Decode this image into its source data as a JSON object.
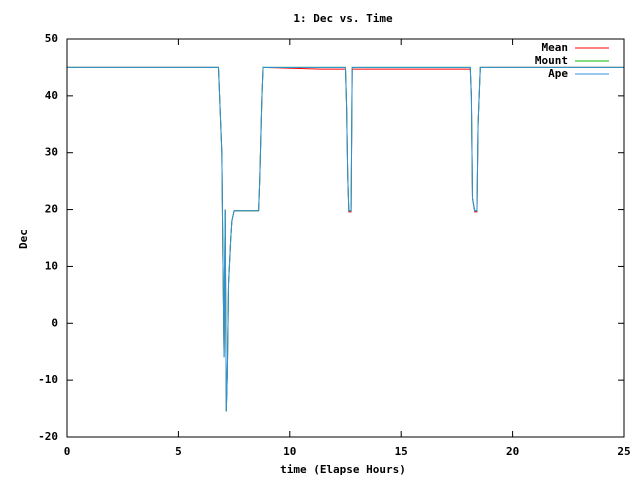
{
  "chart_data": {
    "type": "line",
    "title": "1: Dec vs. Time",
    "x_label": "time (Elapse Hours)",
    "y_label": "Dec",
    "x": [
      0,
      6.8,
      6.85,
      6.95,
      7.0,
      7.05,
      7.1,
      7.15,
      7.2,
      7.25,
      7.35,
      7.4,
      7.5,
      8.6,
      8.65,
      8.75,
      8.8,
      11.4,
      12.5,
      12.55,
      12.6,
      12.65,
      12.75,
      12.8,
      18.1,
      18.15,
      18.2,
      18.3,
      18.4,
      18.45,
      18.55,
      25
    ],
    "series": [
      {
        "name": "Mean",
        "color": "#ff0000",
        "values": [
          45,
          45,
          40,
          30,
          11,
          -6,
          20,
          -15.5,
          -8,
          7,
          15,
          18,
          19.8,
          19.8,
          25,
          40,
          45,
          44.7,
          44.7,
          38,
          26,
          19.6,
          19.6,
          44.7,
          44.7,
          40,
          22,
          19.6,
          19.6,
          35,
          45,
          45
        ]
      },
      {
        "name": "Mount",
        "color": "#00c000",
        "values": [
          45,
          45,
          40,
          30,
          11,
          -6,
          20,
          -15.5,
          -8,
          7,
          15,
          18,
          19.8,
          19.8,
          25,
          40,
          45,
          45,
          45,
          38,
          26,
          19.8,
          19.8,
          45,
          45,
          40,
          22,
          19.8,
          19.8,
          35,
          45,
          45
        ]
      },
      {
        "name": "Ape",
        "color": "#3090e0",
        "values": [
          45,
          45,
          40,
          30,
          11,
          -6,
          20,
          -15.5,
          -8,
          7,
          15,
          18,
          19.8,
          19.8,
          25,
          40,
          45,
          45,
          45,
          38,
          26,
          19.8,
          19.8,
          45,
          45,
          40,
          22,
          19.8,
          19.8,
          35,
          45,
          45
        ]
      }
    ],
    "xlim": [
      0,
      25
    ],
    "xticks": [
      0,
      5,
      10,
      15,
      20,
      25
    ],
    "ylim": [
      -20,
      50
    ],
    "yticks": [
      -20,
      -10,
      0,
      10,
      20,
      30,
      40,
      50
    ],
    "legend": "top-right"
  }
}
